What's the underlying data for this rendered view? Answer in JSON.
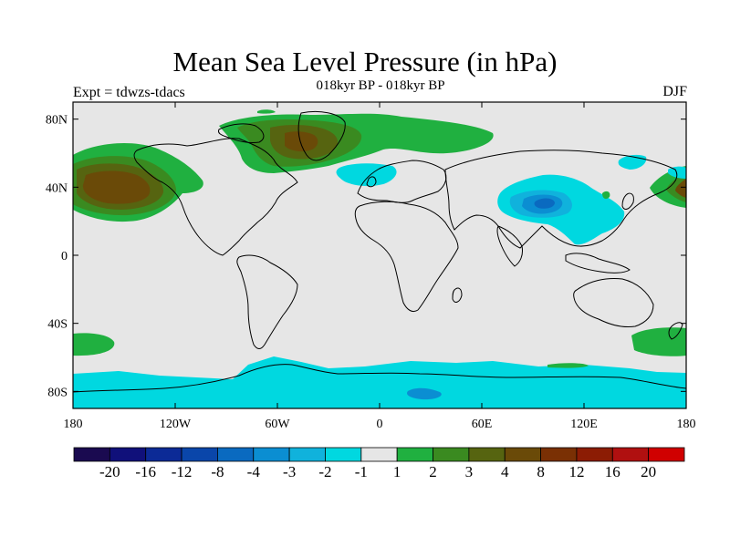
{
  "header": {
    "title": "Mean Sea Level Pressure (in hPa)",
    "subtitle": "018kyr BP - 018kyr BP",
    "left_label": "Expt = tdwzs-tdacs",
    "right_label": "DJF"
  },
  "axes": {
    "x_ticks": [
      {
        "value": 0,
        "label": "180"
      },
      {
        "value": 60,
        "label": "120W"
      },
      {
        "value": 120,
        "label": "60W"
      },
      {
        "value": 180,
        "label": "0"
      },
      {
        "value": 240,
        "label": "60E"
      },
      {
        "value": 300,
        "label": "120E"
      },
      {
        "value": 360,
        "label": "180"
      }
    ],
    "y_ticks": [
      {
        "value": 80,
        "label": "80N"
      },
      {
        "value": 40,
        "label": "40N"
      },
      {
        "value": 0,
        "label": "0"
      },
      {
        "value": -40,
        "label": "40S"
      },
      {
        "value": -80,
        "label": "80S"
      }
    ],
    "lon_range": [
      0,
      360
    ],
    "lat_range": [
      -90,
      90
    ]
  },
  "colorbar": {
    "colors": [
      "#1a0a50",
      "#10107a",
      "#0c2a96",
      "#0a46aa",
      "#0a6ac0",
      "#0b8ed2",
      "#10b2dc",
      "#00d8e0",
      "#e6e6e6",
      "#20b040",
      "#3a8a20",
      "#566410",
      "#6a4a08",
      "#7a3004",
      "#8c1c04",
      "#b01010",
      "#d00000"
    ],
    "labels": [
      "-20",
      "-16",
      "-12",
      "-8",
      "-4",
      "-3",
      "-2",
      "-1",
      "1",
      "2",
      "3",
      "4",
      "8",
      "12",
      "16",
      "20"
    ]
  },
  "colors": {
    "background": "#e6e6e6",
    "land_outline": "#000000"
  }
}
